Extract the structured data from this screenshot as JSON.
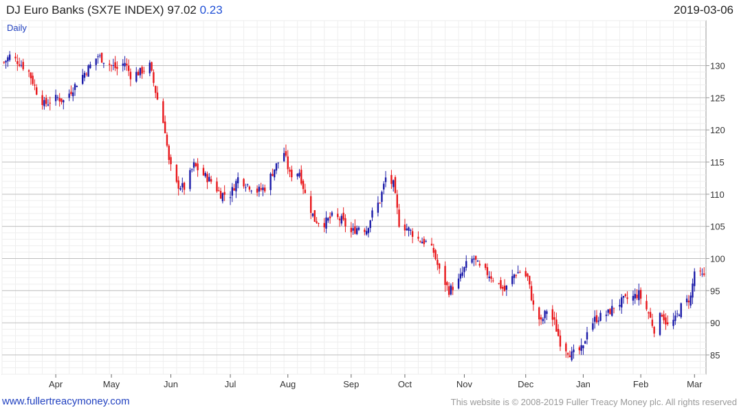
{
  "header": {
    "name": "DJ Euro Banks (SX7E INDEX)",
    "last": "97.02",
    "change": "0.23",
    "date": "2019-03-06"
  },
  "footer": {
    "site": "www.fullertreacymoney.com",
    "copyright": "This website is © 2008-2019 Fuller Treacy Money plc. All rights reserved"
  },
  "colors": {
    "up": "#1a1aa8",
    "down": "#e8161a",
    "grid": "#d9d9d9",
    "frame": "#999999"
  },
  "chart_data": {
    "type": "candlestick",
    "period_label": "Daily",
    "ylim": [
      82,
      137
    ],
    "y_ticks": [
      85,
      90,
      95,
      100,
      105,
      110,
      115,
      120,
      125,
      130
    ],
    "x_ticks": [
      {
        "label": "Apr",
        "date": "2018-04-02"
      },
      {
        "label": "May",
        "date": "2018-05-01"
      },
      {
        "label": "Jun",
        "date": "2018-06-01"
      },
      {
        "label": "Jul",
        "date": "2018-07-02"
      },
      {
        "label": "Aug",
        "date": "2018-08-01"
      },
      {
        "label": "Sep",
        "date": "2018-09-03"
      },
      {
        "label": "Oct",
        "date": "2018-10-01"
      },
      {
        "label": "Nov",
        "date": "2018-11-01"
      },
      {
        "label": "Dec",
        "date": "2018-12-03"
      },
      {
        "label": "Jan",
        "date": "2019-01-02"
      },
      {
        "label": "Feb",
        "date": "2019-02-01"
      },
      {
        "label": "Mar",
        "date": "2019-03-01"
      }
    ],
    "close_path": [
      [
        "2018-03-06",
        130.5
      ],
      [
        "2018-03-09",
        131.5
      ],
      [
        "2018-03-14",
        130.5
      ],
      [
        "2018-03-19",
        129.0
      ],
      [
        "2018-03-23",
        126.0
      ],
      [
        "2018-03-27",
        124.0
      ],
      [
        "2018-04-03",
        125.0
      ],
      [
        "2018-04-06",
        124.5
      ],
      [
        "2018-04-11",
        126.5
      ],
      [
        "2018-04-16",
        128.5
      ],
      [
        "2018-04-20",
        130.0
      ],
      [
        "2018-04-24",
        131.5
      ],
      [
        "2018-05-01",
        130.0
      ],
      [
        "2018-05-04",
        129.5
      ],
      [
        "2018-05-08",
        130.5
      ],
      [
        "2018-05-11",
        128.5
      ],
      [
        "2018-05-16",
        129.0
      ],
      [
        "2018-05-21",
        130.0
      ],
      [
        "2018-05-24",
        126.0
      ],
      [
        "2018-05-29",
        120.0
      ],
      [
        "2018-05-31",
        115.0
      ],
      [
        "2018-06-04",
        111.5
      ],
      [
        "2018-06-08",
        111.0
      ],
      [
        "2018-06-13",
        114.5
      ],
      [
        "2018-06-18",
        113.0
      ],
      [
        "2018-06-22",
        112.0
      ],
      [
        "2018-06-27",
        110.0
      ],
      [
        "2018-07-02",
        110.0
      ],
      [
        "2018-07-06",
        112.5
      ],
      [
        "2018-07-11",
        111.5
      ],
      [
        "2018-07-16",
        110.5
      ],
      [
        "2018-07-20",
        111.0
      ],
      [
        "2018-07-25",
        114.0
      ],
      [
        "2018-07-30",
        116.5
      ],
      [
        "2018-08-02",
        113.0
      ],
      [
        "2018-08-07",
        113.5
      ],
      [
        "2018-08-10",
        110.0
      ],
      [
        "2018-08-15",
        106.0
      ],
      [
        "2018-08-20",
        105.5
      ],
      [
        "2018-08-24",
        106.5
      ],
      [
        "2018-08-29",
        106.0
      ],
      [
        "2018-09-03",
        104.0
      ],
      [
        "2018-09-07",
        105.0
      ],
      [
        "2018-09-11",
        104.5
      ],
      [
        "2018-09-14",
        107.0
      ],
      [
        "2018-09-18",
        109.0
      ],
      [
        "2018-09-21",
        112.5
      ],
      [
        "2018-09-25",
        111.5
      ],
      [
        "2018-09-28",
        105.5
      ],
      [
        "2018-10-03",
        104.5
      ],
      [
        "2018-10-08",
        103.0
      ],
      [
        "2018-10-12",
        102.5
      ],
      [
        "2018-10-16",
        101.0
      ],
      [
        "2018-10-19",
        98.0
      ],
      [
        "2018-10-24",
        95.0
      ],
      [
        "2018-10-29",
        96.5
      ],
      [
        "2018-11-02",
        99.0
      ],
      [
        "2018-11-06",
        100.0
      ],
      [
        "2018-11-09",
        98.5
      ],
      [
        "2018-11-14",
        97.5
      ],
      [
        "2018-11-19",
        96.0
      ],
      [
        "2018-11-22",
        95.0
      ],
      [
        "2018-11-27",
        97.5
      ],
      [
        "2018-11-30",
        98.0
      ],
      [
        "2018-12-04",
        97.0
      ],
      [
        "2018-12-07",
        92.5
      ],
      [
        "2018-12-11",
        90.0
      ],
      [
        "2018-12-14",
        92.0
      ],
      [
        "2018-12-18",
        90.0
      ],
      [
        "2018-12-21",
        87.0
      ],
      [
        "2018-12-27",
        85.0
      ],
      [
        "2019-01-02",
        86.0
      ],
      [
        "2019-01-04",
        89.0
      ],
      [
        "2019-01-08",
        90.5
      ],
      [
        "2019-01-11",
        91.0
      ],
      [
        "2019-01-15",
        91.5
      ],
      [
        "2019-01-18",
        92.5
      ],
      [
        "2019-01-23",
        93.5
      ],
      [
        "2019-01-28",
        94.0
      ],
      [
        "2019-01-31",
        94.5
      ],
      [
        "2019-02-05",
        91.5
      ],
      [
        "2019-02-08",
        89.0
      ],
      [
        "2019-02-12",
        91.5
      ],
      [
        "2019-02-15",
        89.5
      ],
      [
        "2019-02-19",
        90.5
      ],
      [
        "2019-02-22",
        92.5
      ],
      [
        "2019-02-27",
        94.0
      ],
      [
        "2019-03-01",
        98.0
      ],
      [
        "2019-03-06",
        97.02
      ]
    ]
  }
}
